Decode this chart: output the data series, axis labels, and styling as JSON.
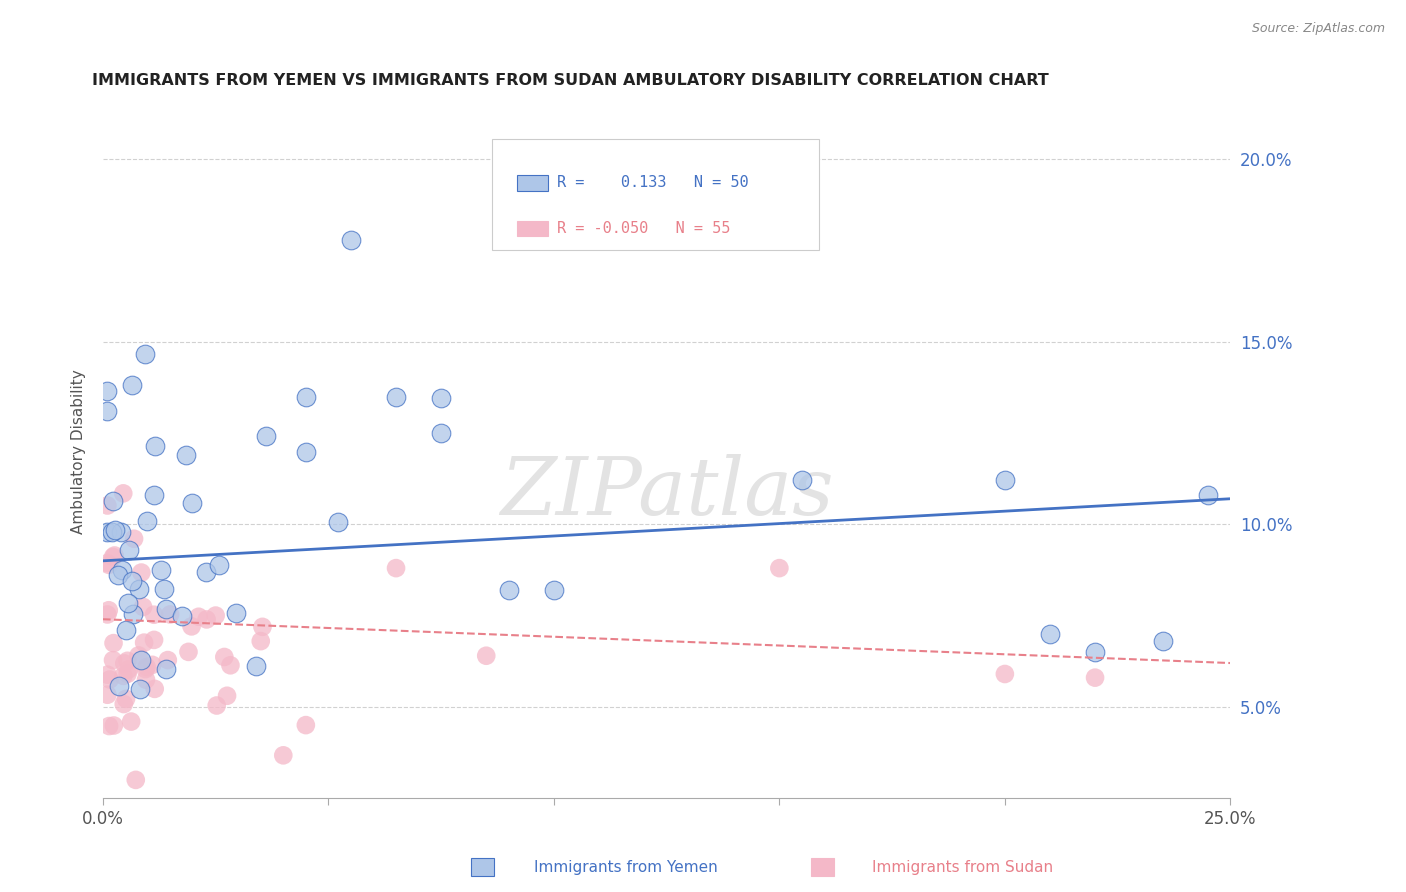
{
  "title": "IMMIGRANTS FROM YEMEN VS IMMIGRANTS FROM SUDAN AMBULATORY DISABILITY CORRELATION CHART",
  "source": "Source: ZipAtlas.com",
  "ylabel": "Ambulatory Disability",
  "watermark": "ZIPatlas",
  "xlim": [
    0.0,
    0.25
  ],
  "ylim_pct": [
    0.025,
    0.215
  ],
  "x_ticks": [
    0.0,
    0.05,
    0.1,
    0.15,
    0.2,
    0.25
  ],
  "x_tick_labels": [
    "0.0%",
    "",
    "",
    "",
    "",
    "25.0%"
  ],
  "y_ticks": [
    0.05,
    0.1,
    0.15,
    0.2
  ],
  "y_tick_labels": [
    "5.0%",
    "10.0%",
    "15.0%",
    "20.0%"
  ],
  "color_yemen": "#aec6e8",
  "color_sudan": "#f4b8c8",
  "color_line_yemen": "#4472c4",
  "color_line_sudan": "#e8808a",
  "color_ytick": "#4472c4",
  "background_color": "#ffffff",
  "grid_color": "#cccccc",
  "yemen_line_x0": 0.0,
  "yemen_line_x1": 0.25,
  "yemen_line_y0": 0.09,
  "yemen_line_y1": 0.107,
  "sudan_line_x0": 0.0,
  "sudan_line_x1": 0.25,
  "sudan_line_y0": 0.074,
  "sudan_line_y1": 0.062
}
